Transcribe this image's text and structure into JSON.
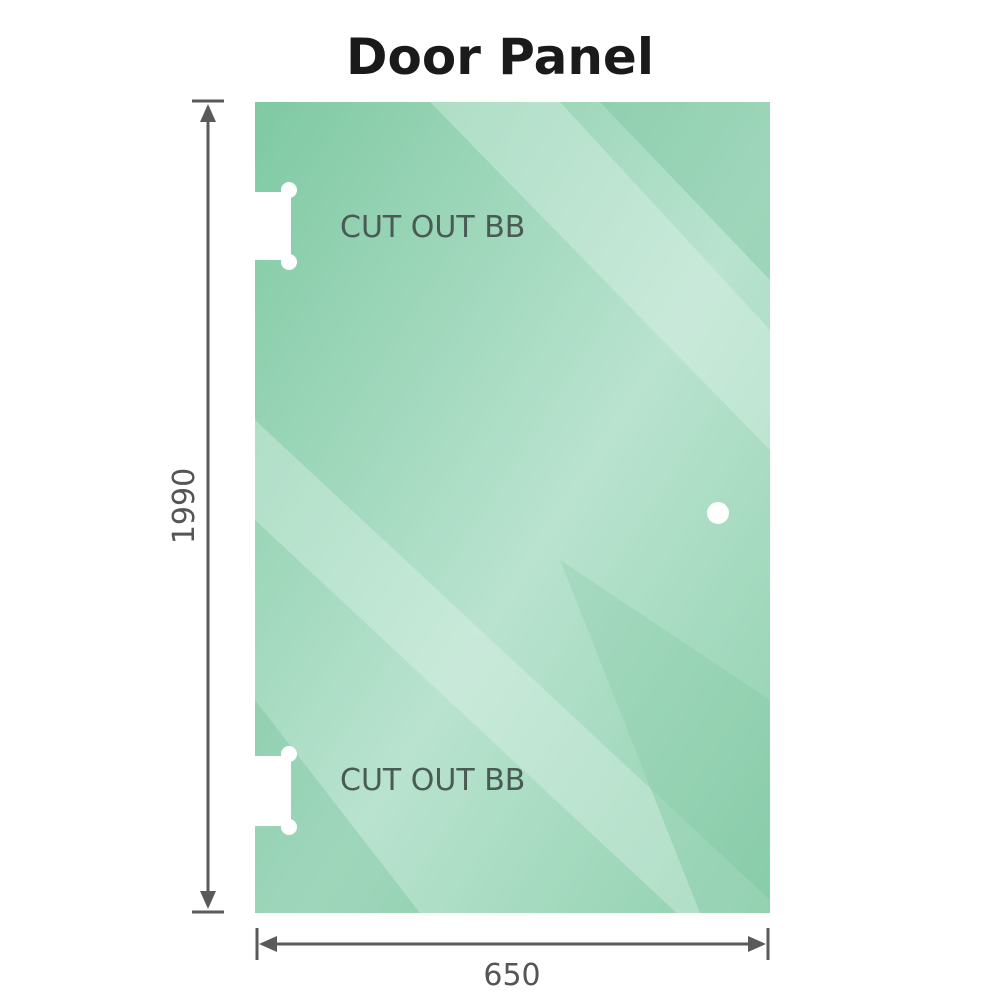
{
  "title": "Door Panel",
  "panel": {
    "color": "#86cba7",
    "cutouts": [
      "CUT OUT BB",
      "CUT OUT BB"
    ],
    "handle_hole": true
  },
  "dimensions": {
    "height": "1990",
    "width": "650",
    "line_color": "#5a5a5a"
  }
}
